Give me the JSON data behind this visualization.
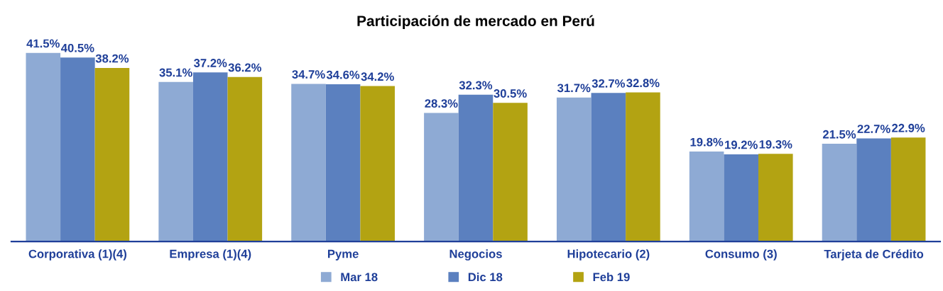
{
  "chart_data": {
    "type": "bar",
    "title": "Participación de mercado en Perú",
    "categories": [
      "Corporativa (1)(4)",
      "Empresa (1)(4)",
      "Pyme",
      "Negocios",
      "Hipotecario (2)",
      "Consumo (3)",
      "Tarjeta de Crédito"
    ],
    "series": [
      {
        "name": "Mar 18",
        "color": "#8eaad4",
        "values": [
          41.5,
          35.1,
          34.7,
          28.3,
          31.7,
          19.8,
          21.5
        ],
        "value_labels": [
          "41.5%",
          "35.1%",
          "34.7%",
          "28.3%",
          "31.7%",
          "19.8%",
          "21.5%"
        ]
      },
      {
        "name": "Dic 18",
        "color": "#5b80bf",
        "values": [
          40.5,
          37.2,
          34.6,
          32.3,
          32.7,
          19.2,
          22.7
        ],
        "value_labels": [
          "40.5%",
          "37.2%",
          "34.6%",
          "32.3%",
          "32.7%",
          "19.2%",
          "22.7%"
        ]
      },
      {
        "name": "Feb 19",
        "color": "#b3a312",
        "values": [
          38.2,
          36.2,
          34.2,
          30.5,
          32.8,
          19.3,
          22.9
        ],
        "value_labels": [
          "38.2%",
          "36.2%",
          "34.2%",
          "30.5%",
          "32.8%",
          "19.3%",
          "22.9%"
        ]
      }
    ],
    "legend": "bottom",
    "grid": false,
    "tick_labels": "x"
  }
}
